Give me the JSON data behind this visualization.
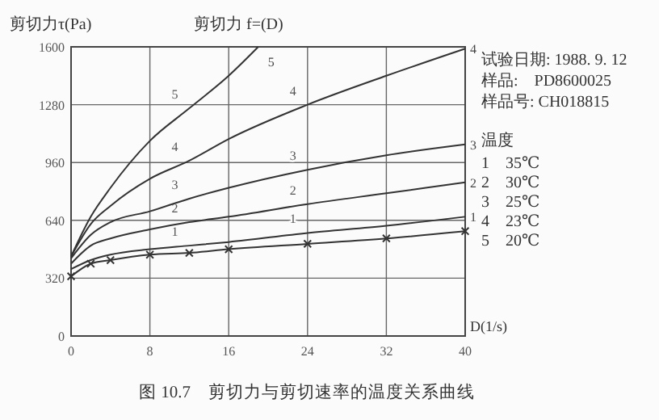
{
  "chart_data": {
    "type": "line",
    "title": "图 10.7　剪切力与剪切速率的温度关系曲线",
    "ylabel": "剪切力τ(Pa)",
    "xlabel": "D(1/s)",
    "legend_title": "温度",
    "annotations": [
      "剪切力 f=(D)",
      "试验日期: 1988. 9. 12",
      "样品:　PD8600025",
      "样品号: CH018815",
      "1　35℃",
      "2　30℃",
      "3　25℃",
      "4　23℃",
      "5　20℃"
    ],
    "xlim": [
      0,
      40
    ],
    "xticks": [
      0,
      8,
      16,
      24,
      32,
      40
    ],
    "ylim": [
      0,
      1600
    ],
    "yticks": [
      0,
      320,
      640,
      960,
      1280,
      1600
    ],
    "grid": true,
    "line_style": "solid",
    "series": [
      {
        "color": "#333333",
        "marker": "cross",
        "x": [
          0,
          2,
          4,
          8,
          12,
          16,
          24,
          32,
          40
        ],
        "values": [
          330,
          400,
          420,
          450,
          460,
          480,
          510,
          540,
          580
        ]
      },
      {
        "name": "1",
        "color": "#333333",
        "marker": "none",
        "x": [
          0,
          2,
          4,
          8,
          12,
          16,
          24,
          32,
          40
        ],
        "values": [
          370,
          420,
          450,
          480,
          500,
          520,
          570,
          610,
          660
        ]
      },
      {
        "name": "2",
        "color": "#333333",
        "marker": "none",
        "x": [
          0,
          2,
          4,
          8,
          12,
          16,
          24,
          32,
          40
        ],
        "values": [
          400,
          500,
          540,
          590,
          630,
          660,
          730,
          790,
          850
        ]
      },
      {
        "name": "3",
        "color": "#333333",
        "marker": "none",
        "x": [
          0,
          2,
          4,
          8,
          12,
          16,
          24,
          32,
          40
        ],
        "values": [
          430,
          560,
          630,
          690,
          760,
          820,
          920,
          1000,
          1060
        ]
      },
      {
        "name": "4",
        "color": "#333333",
        "marker": "none",
        "x": [
          0,
          2,
          4,
          8,
          12,
          16,
          24,
          32,
          40
        ],
        "values": [
          440,
          620,
          720,
          870,
          970,
          1090,
          1280,
          1440,
          1590
        ]
      },
      {
        "name": "5",
        "color": "#333333",
        "marker": "none",
        "x": [
          0,
          2,
          4,
          8,
          12,
          16,
          19
        ],
        "values": [
          440,
          660,
          820,
          1080,
          1260,
          1440,
          1600
        ]
      }
    ]
  }
}
